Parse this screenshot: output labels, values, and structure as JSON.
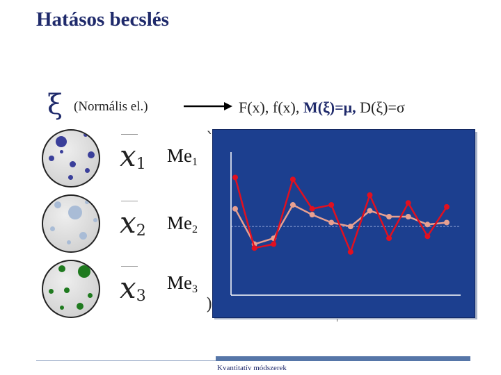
{
  "slide": {
    "title": "Hatásos becslés",
    "xi_symbol": "ξ",
    "distribution_label": "(Normális el.)",
    "params": {
      "part1": "F(x), f(x), ",
      "mean": "M(ξ)=μ,",
      "part2": " D(ξ)=σ"
    },
    "samples": [
      {
        "var": "x",
        "index": "1",
        "estimator": "Me",
        "estimator_index": "1",
        "color": "#3a3f9a"
      },
      {
        "var": "x",
        "index": "2",
        "estimator": "Me",
        "estimator_index": "2",
        "color": "#a9bcd6"
      },
      {
        "var": "x",
        "index": "3",
        "estimator": "Me",
        "estimator_index": "3",
        "color": "#1f7a1f"
      }
    ],
    "footer": "Kvantitatív módszerek"
  },
  "chart_data": {
    "type": "line",
    "title": "",
    "xlabel": "",
    "ylabel": "",
    "x": [
      1,
      2,
      3,
      4,
      5,
      6,
      7,
      8,
      9,
      10,
      11,
      12
    ],
    "reference_line": 0,
    "series": [
      {
        "color": "#e01020",
        "values": [
          2.5,
          -1.1,
          -0.9,
          2.4,
          0.9,
          1.1,
          -1.3,
          1.6,
          -0.6,
          1.2,
          -0.5,
          1.0
        ]
      },
      {
        "color": "#e8a090",
        "values": [
          0.9,
          -0.9,
          -0.6,
          1.1,
          0.6,
          0.2,
          0.0,
          0.8,
          0.5,
          0.5,
          0.1,
          0.2
        ]
      }
    ],
    "ylim": [
      -3.5,
      4.5
    ],
    "colors": {
      "background": "#1c3f8f",
      "axis": "#ffffff",
      "reference": "#8fa3d6"
    }
  }
}
